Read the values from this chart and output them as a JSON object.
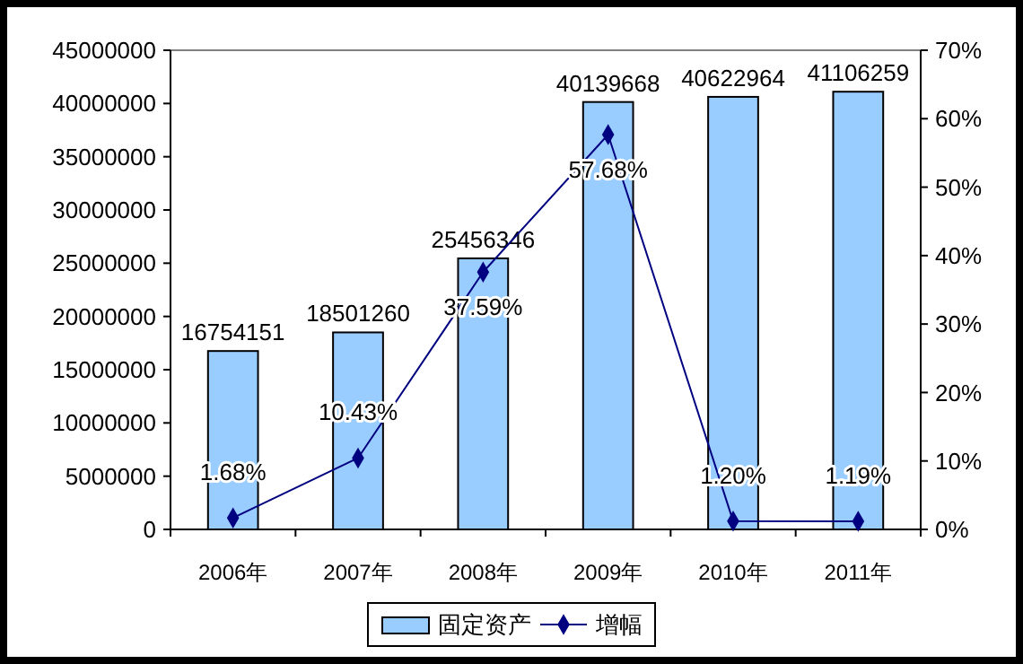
{
  "chart_data": {
    "type": "bar",
    "categories": [
      "2006年",
      "2007年",
      "2008年",
      "2009年",
      "2010年",
      "2011年"
    ],
    "series": [
      {
        "name": "固定资产",
        "color": "#99ccff",
        "values": [
          16754151,
          18501260,
          25456346,
          40139668,
          40622964,
          41106259
        ]
      },
      {
        "name": "增幅",
        "type": "line",
        "axis": "y2",
        "color": "#000080",
        "values": [
          1.68,
          10.43,
          37.59,
          57.68,
          1.2,
          1.19
        ],
        "value_labels": [
          "1.68%",
          "10.43%",
          "37.59%",
          "57.68%",
          "1.20%",
          "1.19%"
        ]
      }
    ],
    "ylim": [
      0,
      45000000
    ],
    "yticks": [
      0,
      5000000,
      10000000,
      15000000,
      20000000,
      25000000,
      30000000,
      35000000,
      40000000,
      45000000
    ],
    "y2lim": [
      0,
      70
    ],
    "y2ticks": [
      {
        "value": 0,
        "label": "0%"
      },
      {
        "value": 10,
        "label": "10%"
      },
      {
        "value": 20,
        "label": "20%"
      },
      {
        "value": 30,
        "label": "30%"
      },
      {
        "value": 40,
        "label": "40%"
      },
      {
        "value": 50,
        "label": "50%"
      },
      {
        "value": 60,
        "label": "60%"
      },
      {
        "value": 70,
        "label": "70%"
      }
    ],
    "data_labels": true,
    "grid": false,
    "legend": "bottom",
    "marker": "diamond",
    "line_style": "solid"
  }
}
